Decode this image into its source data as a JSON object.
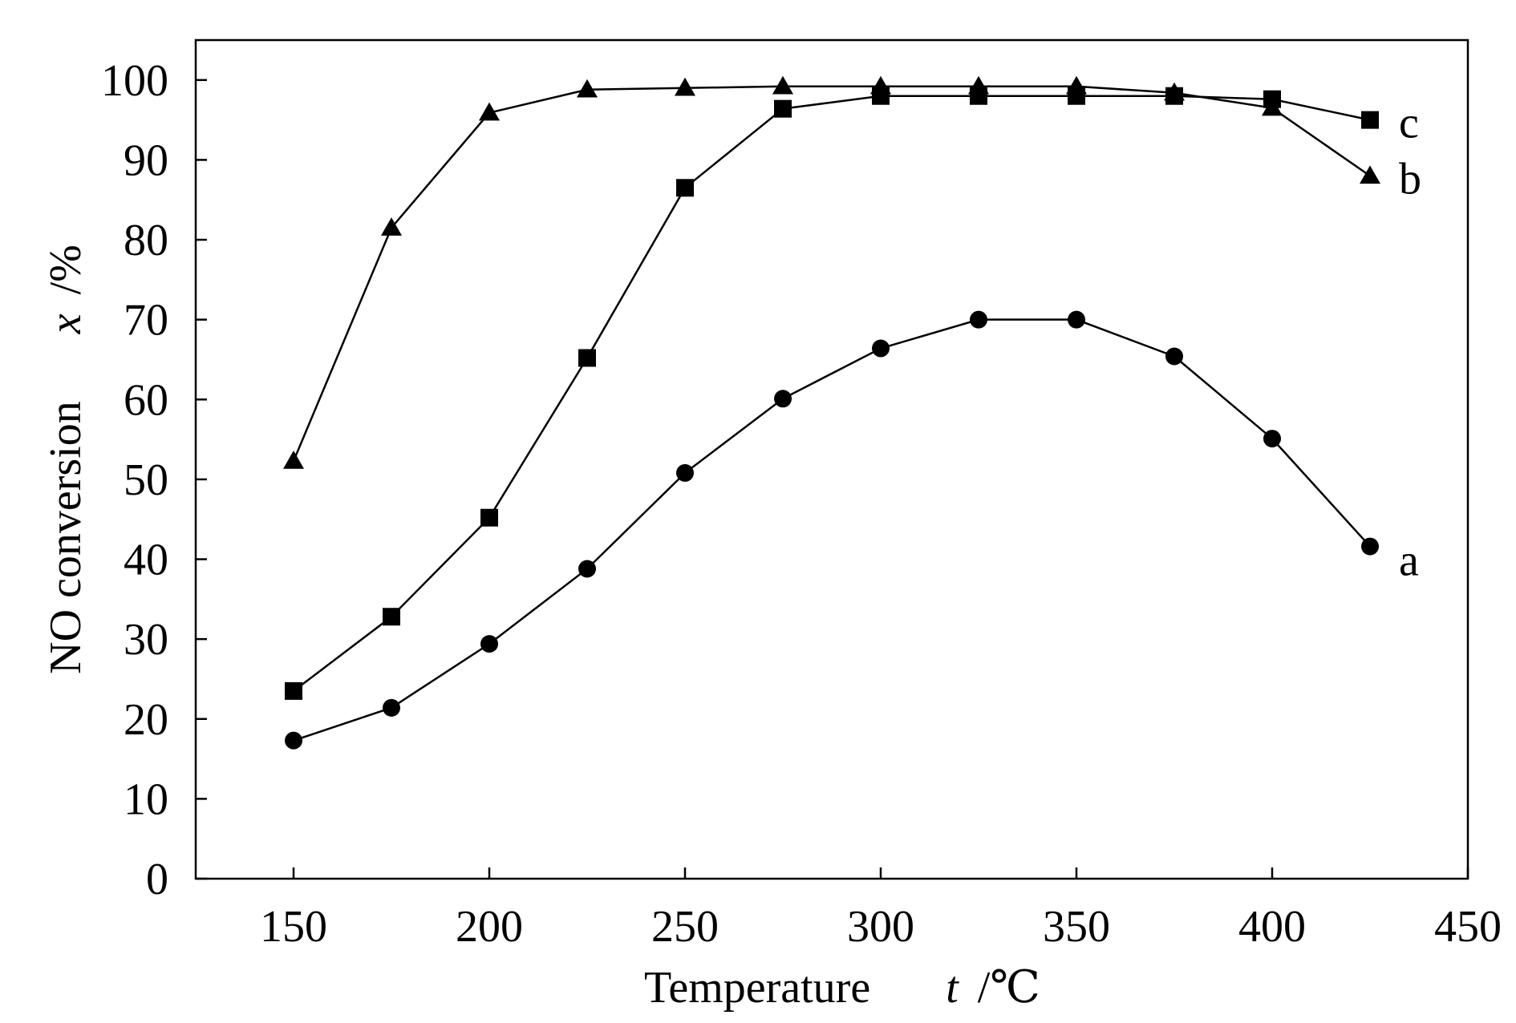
{
  "chart_data": {
    "type": "line",
    "xlabel": "Temperature",
    "xlabel_symbol": "t",
    "xlabel_unit": "/℃",
    "ylabel": "NO conversion",
    "ylabel_symbol": "x",
    "ylabel_unit": "/%",
    "xlim": [
      125,
      450
    ],
    "ylim": [
      0,
      105
    ],
    "xticks": [
      150,
      200,
      250,
      300,
      350,
      400,
      450
    ],
    "yticks": [
      0,
      10,
      20,
      30,
      40,
      50,
      60,
      70,
      80,
      90,
      100
    ],
    "grid": false,
    "series": [
      {
        "name": "a",
        "marker": "circle",
        "x": [
          150,
          175,
          200,
          225,
          250,
          275,
          300,
          325,
          350,
          375,
          400,
          425
        ],
        "y": [
          17.3,
          21.4,
          29.4,
          38.8,
          50.8,
          60.1,
          66.4,
          70.0,
          70.0,
          65.4,
          55.1,
          41.6
        ]
      },
      {
        "name": "b",
        "marker": "triangle",
        "x": [
          150,
          175,
          200,
          225,
          250,
          275,
          300,
          325,
          350,
          375,
          400,
          425
        ],
        "y": [
          52.3,
          81.5,
          95.9,
          98.8,
          99.0,
          99.2,
          99.2,
          99.2,
          99.2,
          98.4,
          96.5,
          88.0
        ]
      },
      {
        "name": "c",
        "marker": "square",
        "x": [
          150,
          175,
          200,
          225,
          250,
          275,
          300,
          325,
          350,
          375,
          400,
          425
        ],
        "y": [
          23.5,
          32.8,
          45.2,
          65.2,
          86.5,
          96.4,
          98.0,
          98.0,
          98.0,
          98.0,
          97.6,
          95.0
        ]
      }
    ]
  }
}
